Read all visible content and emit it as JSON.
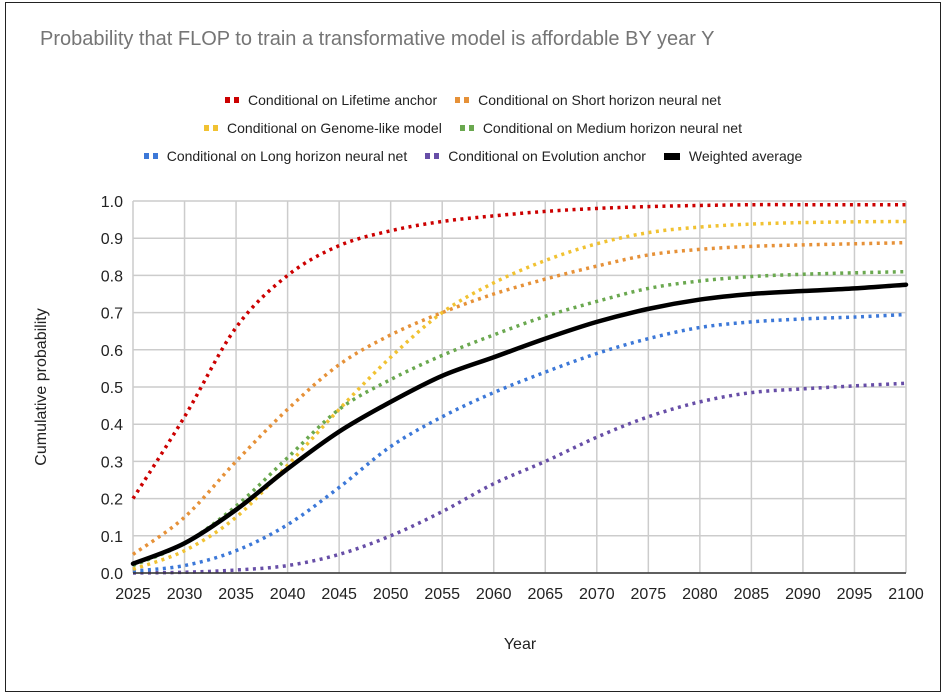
{
  "chart_data": {
    "type": "line",
    "title": "Probability that FLOP to train a transformative model is affordable BY year Y",
    "xlabel": "Year",
    "ylabel": "Cumulative probability",
    "xlim": [
      2025,
      2100
    ],
    "ylim": [
      0,
      1
    ],
    "grid": true,
    "legend_position": "top",
    "x_ticks": [
      "2025",
      "2030",
      "2035",
      "2040",
      "2045",
      "2050",
      "2055",
      "2060",
      "2065",
      "2070",
      "2075",
      "2080",
      "2085",
      "2090",
      "2095",
      "2100"
    ],
    "y_ticks": [
      "0.0",
      "0.1",
      "0.2",
      "0.3",
      "0.4",
      "0.5",
      "0.6",
      "0.7",
      "0.8",
      "0.9",
      "1.0"
    ],
    "x": [
      2025,
      2030,
      2035,
      2040,
      2045,
      2050,
      2055,
      2060,
      2065,
      2070,
      2075,
      2080,
      2085,
      2090,
      2095,
      2100
    ],
    "series": [
      {
        "name": "Conditional on Lifetime anchor",
        "color": "#cc0000",
        "style": "dotted",
        "values": [
          0.2,
          0.42,
          0.66,
          0.8,
          0.88,
          0.92,
          0.945,
          0.96,
          0.972,
          0.98,
          0.985,
          0.988,
          0.99,
          0.99,
          0.99,
          0.99
        ]
      },
      {
        "name": "Conditional on Short horizon neural net",
        "color": "#e69138",
        "style": "dotted",
        "values": [
          0.05,
          0.15,
          0.3,
          0.44,
          0.56,
          0.64,
          0.7,
          0.75,
          0.79,
          0.825,
          0.855,
          0.87,
          0.878,
          0.882,
          0.885,
          0.888
        ]
      },
      {
        "name": "Conditional on Genome-like model",
        "color": "#f1c232",
        "style": "dotted",
        "values": [
          0.01,
          0.06,
          0.15,
          0.29,
          0.44,
          0.58,
          0.7,
          0.78,
          0.84,
          0.885,
          0.915,
          0.93,
          0.938,
          0.942,
          0.944,
          0.945
        ]
      },
      {
        "name": "Conditional on Medium horizon neural net",
        "color": "#6aa84f",
        "style": "dotted",
        "values": [
          0.02,
          0.08,
          0.18,
          0.31,
          0.44,
          0.52,
          0.585,
          0.64,
          0.69,
          0.73,
          0.765,
          0.785,
          0.797,
          0.803,
          0.807,
          0.81
        ]
      },
      {
        "name": "Conditional on Long horizon neural net",
        "color": "#3c78d8",
        "style": "dotted",
        "values": [
          0.005,
          0.02,
          0.06,
          0.13,
          0.23,
          0.34,
          0.42,
          0.485,
          0.54,
          0.59,
          0.63,
          0.66,
          0.675,
          0.683,
          0.688,
          0.695
        ]
      },
      {
        "name": "Conditional on Evolution anchor",
        "color": "#674ea7",
        "style": "dotted",
        "values": [
          0.0,
          0.002,
          0.008,
          0.02,
          0.05,
          0.1,
          0.165,
          0.24,
          0.3,
          0.365,
          0.42,
          0.46,
          0.485,
          0.495,
          0.503,
          0.51
        ]
      },
      {
        "name": "Weighted average",
        "color": "#000000",
        "style": "solid",
        "values": [
          0.025,
          0.08,
          0.17,
          0.28,
          0.38,
          0.46,
          0.53,
          0.58,
          0.63,
          0.675,
          0.71,
          0.735,
          0.75,
          0.758,
          0.765,
          0.775
        ]
      }
    ]
  }
}
